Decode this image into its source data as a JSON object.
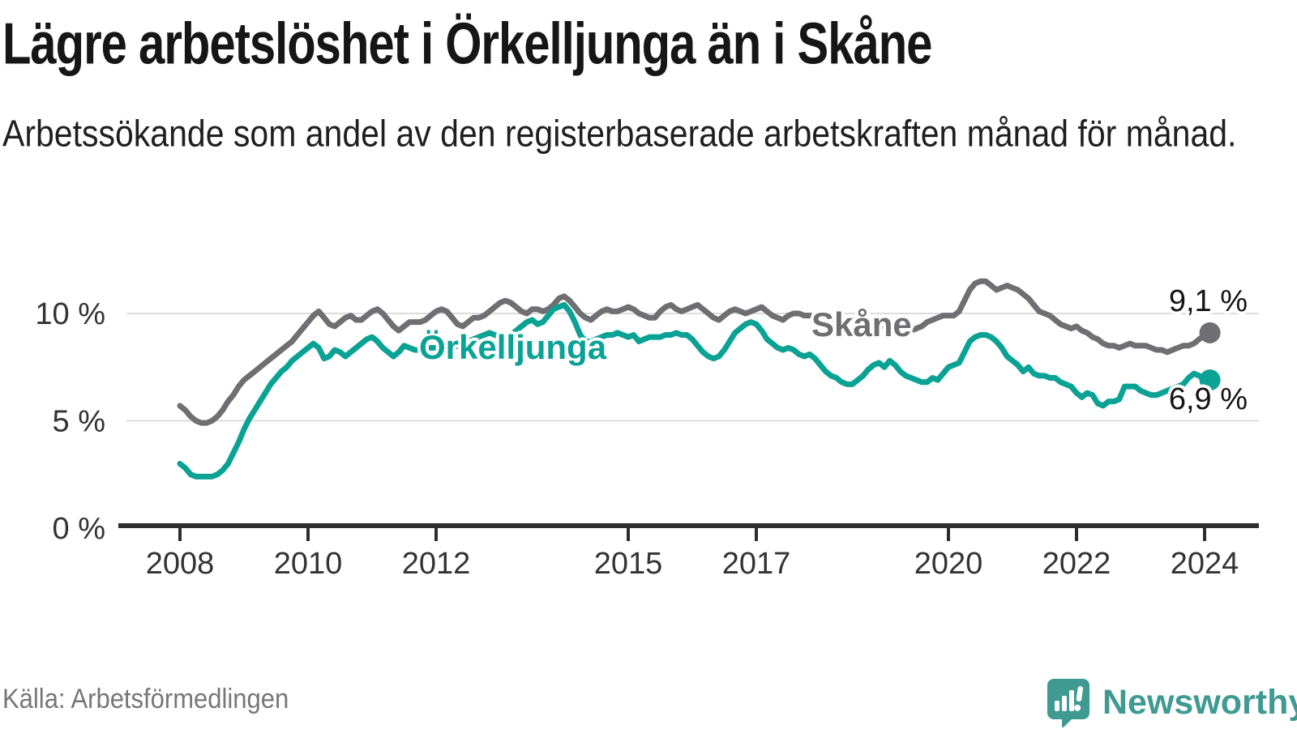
{
  "header": {
    "title": "Lägre arbetslöshet i Örkelljunga än i Skåne",
    "subtitle": "Arbetssökande som andel av den registerbaserade arbetskraften månad för månad."
  },
  "footer": {
    "source": "Källa: Arbetsförmedlingen",
    "logo_text": "Newsworthy"
  },
  "colors": {
    "skane_line": "#6f6f73",
    "orkelljunga_line": "#0aa294",
    "grid": "#dcdcdc",
    "axis": "#2d2d2d",
    "tick_label": "#333333",
    "value_label": "#141414",
    "muted_text": "#76767b",
    "logo_teal": "#3f9a92",
    "background": "#ffffff"
  },
  "chart_data": {
    "type": "line",
    "title": "Lägre arbetslöshet i Örkelljunga än i Skåne",
    "unit": "%",
    "x_start": "2008-01",
    "x_end": "2024-02",
    "x_interval": "month",
    "x_ticks": [
      2008,
      2010,
      2012,
      2015,
      2017,
      2020,
      2022,
      2024
    ],
    "y_ticks": [
      {
        "value": 0,
        "label": "0 %"
      },
      {
        "value": 5,
        "label": "5 %"
      },
      {
        "value": 10,
        "label": "10 %"
      }
    ],
    "ylim": [
      0,
      12.8
    ],
    "grid": "horizontal",
    "legend_position": "inline-labels",
    "series": [
      {
        "id": "skane",
        "name": "Skåne",
        "color": "#6f6f73",
        "end_label": "9,1 %",
        "end_value": 9.1,
        "values": [
          5.7,
          5.5,
          5.2,
          5.0,
          4.9,
          4.9,
          5.0,
          5.2,
          5.5,
          5.9,
          6.2,
          6.6,
          6.9,
          7.1,
          7.3,
          7.5,
          7.7,
          7.9,
          8.1,
          8.3,
          8.5,
          8.7,
          9.0,
          9.3,
          9.6,
          9.9,
          10.1,
          9.8,
          9.5,
          9.4,
          9.6,
          9.8,
          9.9,
          9.7,
          9.7,
          9.9,
          10.1,
          10.2,
          10.0,
          9.7,
          9.4,
          9.2,
          9.4,
          9.6,
          9.6,
          9.6,
          9.7,
          9.9,
          10.1,
          10.2,
          10.1,
          9.8,
          9.5,
          9.4,
          9.6,
          9.8,
          9.8,
          9.9,
          10.1,
          10.3,
          10.5,
          10.6,
          10.5,
          10.3,
          10.1,
          10.0,
          10.2,
          10.2,
          10.1,
          10.2,
          10.4,
          10.7,
          10.8,
          10.6,
          10.3,
          10.0,
          9.8,
          9.7,
          9.9,
          10.1,
          10.2,
          10.1,
          10.1,
          10.2,
          10.3,
          10.2,
          10.0,
          9.9,
          9.8,
          9.8,
          10.1,
          10.3,
          10.4,
          10.2,
          10.1,
          10.2,
          10.3,
          10.4,
          10.2,
          10.0,
          9.8,
          9.7,
          9.9,
          10.1,
          10.2,
          10.1,
          10.0,
          10.1,
          10.2,
          10.3,
          10.1,
          9.9,
          9.8,
          9.7,
          9.9,
          10.0,
          10.0,
          9.9,
          9.9,
          9.9,
          9.9,
          9.8,
          9.8,
          9.7,
          9.6,
          9.6,
          9.7,
          9.6,
          9.6,
          9.5,
          9.4,
          9.4,
          9.4,
          9.3,
          9.2,
          9.2,
          9.2,
          9.2,
          9.3,
          9.4,
          9.6,
          9.7,
          9.8,
          9.9,
          9.9,
          9.9,
          10.1,
          10.6,
          11.1,
          11.4,
          11.5,
          11.5,
          11.3,
          11.1,
          11.2,
          11.3,
          11.2,
          11.1,
          10.9,
          10.7,
          10.4,
          10.1,
          10.0,
          9.9,
          9.7,
          9.5,
          9.4,
          9.3,
          9.4,
          9.2,
          9.1,
          8.9,
          8.8,
          8.6,
          8.5,
          8.5,
          8.4,
          8.5,
          8.6,
          8.5,
          8.5,
          8.5,
          8.4,
          8.3,
          8.3,
          8.2,
          8.3,
          8.4,
          8.5,
          8.5,
          8.6,
          8.8,
          9.0,
          9.1
        ]
      },
      {
        "id": "orkelljunga",
        "name": "Örkelljunga",
        "color": "#0aa294",
        "end_label": "6,9 %",
        "end_value": 6.9,
        "values": [
          3.0,
          2.8,
          2.5,
          2.4,
          2.4,
          2.4,
          2.4,
          2.5,
          2.7,
          3.0,
          3.5,
          4.0,
          4.6,
          5.1,
          5.5,
          5.9,
          6.3,
          6.7,
          7.0,
          7.3,
          7.5,
          7.8,
          8.0,
          8.2,
          8.4,
          8.6,
          8.4,
          7.9,
          8.0,
          8.3,
          8.2,
          8.0,
          8.2,
          8.4,
          8.6,
          8.8,
          8.9,
          8.7,
          8.4,
          8.2,
          8.0,
          8.2,
          8.5,
          8.4,
          8.3,
          8.3,
          8.3,
          8.4,
          8.4,
          8.5,
          8.5,
          8.4,
          8.5,
          8.6,
          8.7,
          8.8,
          8.9,
          9.0,
          9.1,
          9.0,
          8.9,
          8.9,
          9.0,
          9.2,
          9.4,
          9.6,
          9.7,
          9.5,
          9.6,
          9.9,
          10.2,
          10.3,
          10.4,
          10.1,
          9.6,
          9.0,
          8.7,
          8.7,
          8.8,
          8.9,
          9.0,
          9.0,
          9.1,
          9.0,
          8.9,
          9.0,
          8.7,
          8.8,
          8.9,
          8.9,
          8.9,
          9.0,
          9.0,
          9.1,
          9.0,
          9.0,
          8.8,
          8.5,
          8.2,
          8.0,
          7.9,
          8.0,
          8.3,
          8.7,
          9.1,
          9.3,
          9.5,
          9.6,
          9.5,
          9.2,
          8.8,
          8.6,
          8.4,
          8.3,
          8.4,
          8.3,
          8.1,
          8.0,
          8.1,
          7.9,
          7.6,
          7.3,
          7.1,
          7.0,
          6.8,
          6.7,
          6.7,
          6.9,
          7.1,
          7.4,
          7.6,
          7.7,
          7.5,
          7.8,
          7.6,
          7.3,
          7.1,
          7.0,
          6.9,
          6.8,
          6.8,
          7.0,
          6.9,
          7.2,
          7.5,
          7.6,
          7.7,
          8.2,
          8.7,
          8.9,
          9.0,
          9.0,
          8.9,
          8.7,
          8.4,
          8.0,
          7.8,
          7.6,
          7.3,
          7.5,
          7.2,
          7.1,
          7.1,
          7.0,
          7.0,
          6.8,
          6.7,
          6.6,
          6.3,
          6.1,
          6.3,
          6.2,
          5.8,
          5.7,
          5.9,
          5.9,
          6.0,
          6.6,
          6.6,
          6.6,
          6.4,
          6.3,
          6.2,
          6.2,
          6.3,
          6.4,
          6.5,
          6.6,
          6.7,
          7.0,
          7.2,
          7.1,
          6.9,
          6.9
        ]
      }
    ]
  }
}
